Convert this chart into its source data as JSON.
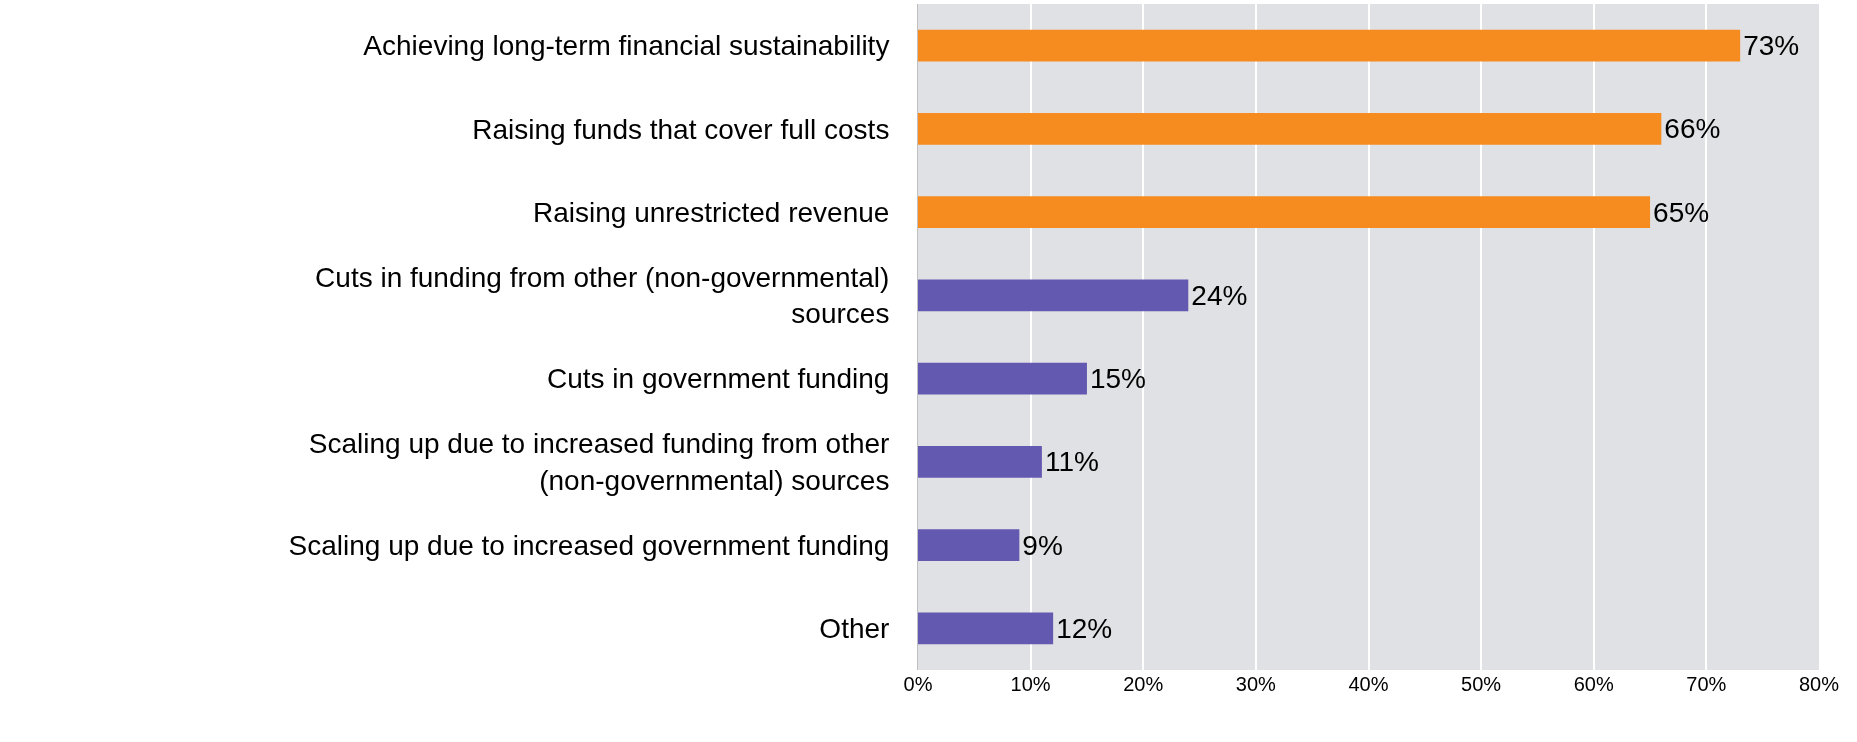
{
  "chart_data": {
    "type": "bar",
    "orientation": "horizontal",
    "categories": [
      "Achieving long-term financial sustainability",
      "Raising funds that cover full costs",
      "Raising unrestricted revenue",
      "Cuts in funding from other (non-governmental) sources",
      "Cuts in government funding",
      "Scaling up due to increased funding from other (non-governmental) sources",
      "Scaling up due to increased government funding",
      "Other"
    ],
    "values": [
      73,
      66,
      65,
      24,
      15,
      11,
      9,
      12
    ],
    "colors": [
      "#f68b1f",
      "#f68b1f",
      "#f68b1f",
      "#6459b0",
      "#6459b0",
      "#6459b0",
      "#6459b0",
      "#6459b0"
    ],
    "value_labels": [
      "73%",
      "66%",
      "65%",
      "24%",
      "15%",
      "11%",
      "9%",
      "12%"
    ],
    "xlim": [
      0,
      80
    ],
    "xticks": [
      {
        "value": 0,
        "label": "0%"
      },
      {
        "value": 10,
        "label": "10%"
      },
      {
        "value": 20,
        "label": "20%"
      },
      {
        "value": 30,
        "label": "30%"
      },
      {
        "value": 40,
        "label": "40%"
      },
      {
        "value": 50,
        "label": "50%"
      },
      {
        "value": 60,
        "label": "60%"
      },
      {
        "value": 70,
        "label": "70%"
      },
      {
        "value": 80,
        "label": "80%"
      }
    ],
    "grid": "x"
  }
}
